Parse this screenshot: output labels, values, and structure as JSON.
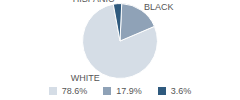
{
  "chart_data": {
    "type": "pie",
    "categories": [
      "WHITE",
      "BLACK",
      "HISPANIC"
    ],
    "values": [
      78.6,
      17.9,
      3.6
    ],
    "value_labels": [
      "78.6%",
      "17.9%",
      "3.6%"
    ],
    "colors": [
      "#d5dde6",
      "#8fa2b7",
      "#2f5a7e"
    ]
  }
}
